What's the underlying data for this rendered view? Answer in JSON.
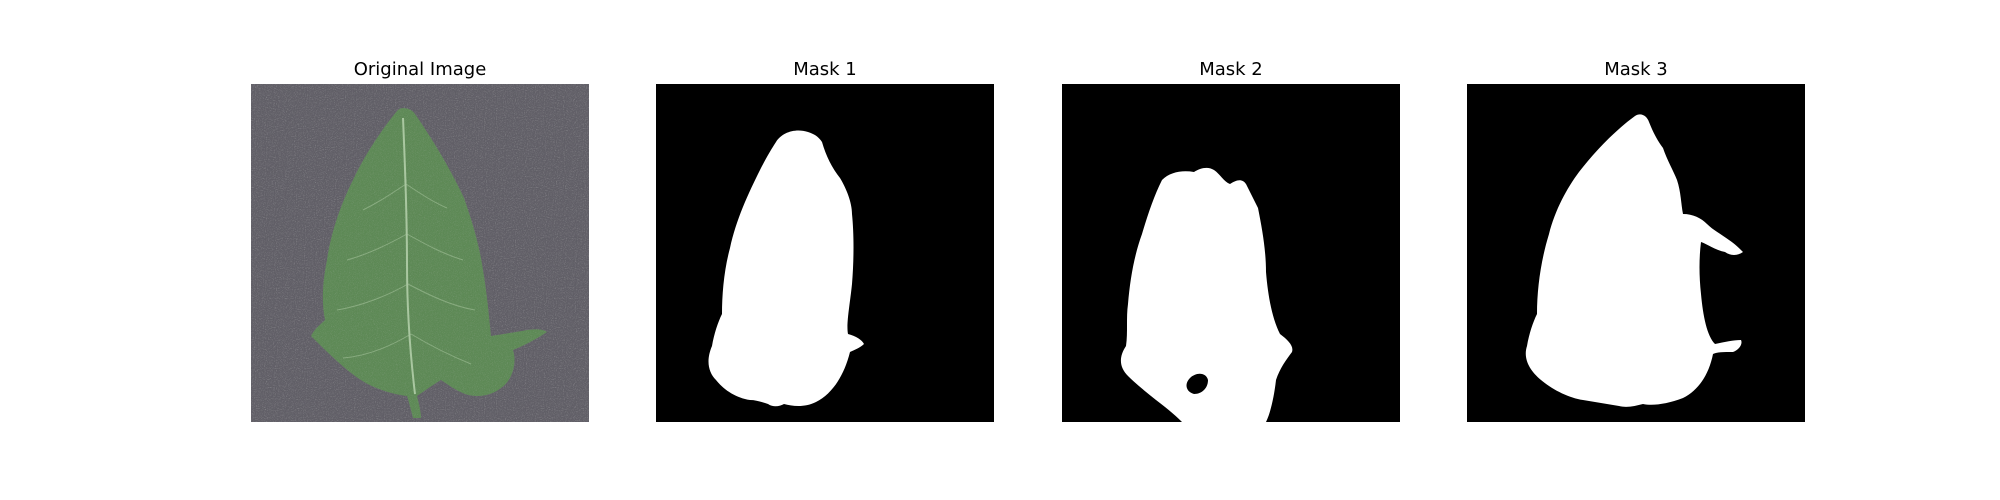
{
  "panels": [
    {
      "title": "Original Image",
      "kind": "photo",
      "subject": "leaf"
    },
    {
      "title": "Mask 1",
      "kind": "mask"
    },
    {
      "title": "Mask 2",
      "kind": "mask"
    },
    {
      "title": "Mask 3",
      "kind": "mask"
    }
  ],
  "colors": {
    "background": "#ffffff",
    "mask_background": "#000000",
    "mask_foreground": "#ffffff",
    "photo_background": "#626068",
    "leaf_fill": "#5e8a56",
    "leaf_vein": "#a9c7a0"
  }
}
